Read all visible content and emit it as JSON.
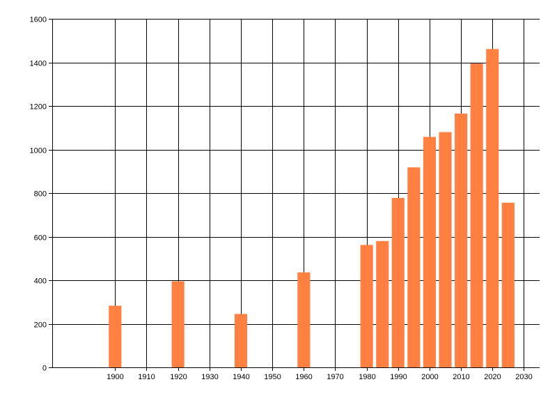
{
  "chart_data": {
    "type": "bar",
    "title": "",
    "xlabel": "",
    "ylabel": "",
    "x": [
      1900,
      1920,
      1940,
      1960,
      1980,
      1985,
      1990,
      1995,
      2000,
      2005,
      2010,
      2015,
      2020,
      2025
    ],
    "values": [
      283,
      395,
      245,
      436,
      562,
      580,
      778,
      918,
      1058,
      1080,
      1165,
      1395,
      1461,
      756
    ],
    "xlim": [
      1880,
      2035
    ],
    "ylim": [
      0,
      1600
    ],
    "x_ticks": [
      1900,
      1910,
      1920,
      1930,
      1940,
      1950,
      1960,
      1970,
      1980,
      1990,
      2000,
      2010,
      2020,
      2030
    ],
    "y_ticks": [
      0,
      200,
      400,
      600,
      800,
      1000,
      1200,
      1400,
      1600
    ],
    "bar_width_years": 4,
    "grid": true,
    "legend": "none",
    "colors": {
      "bar": "#ff8040",
      "grid": "#000000",
      "axis": "#000000",
      "background": "#ffffff"
    }
  }
}
